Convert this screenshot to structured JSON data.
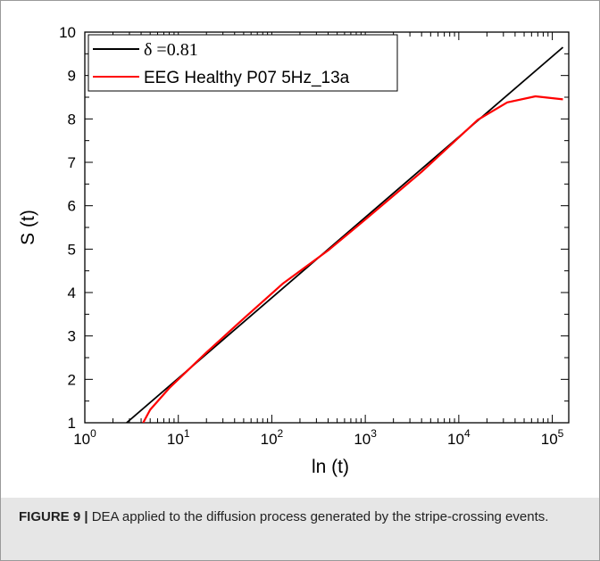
{
  "chart_data": {
    "type": "line",
    "xlabel": "ln (t)",
    "ylabel": "S (t)",
    "x_scale": "log10",
    "xlim": [
      1,
      150000
    ],
    "ylim": [
      1,
      10
    ],
    "x_ticks": [
      {
        "value": 1,
        "base": "10",
        "exp": "0"
      },
      {
        "value": 10,
        "base": "10",
        "exp": "1"
      },
      {
        "value": 100,
        "base": "10",
        "exp": "2"
      },
      {
        "value": 1000,
        "base": "10",
        "exp": "3"
      },
      {
        "value": 10000,
        "base": "10",
        "exp": "4"
      },
      {
        "value": 100000,
        "base": "10",
        "exp": "5"
      }
    ],
    "y_ticks": [
      1,
      2,
      3,
      4,
      5,
      6,
      7,
      8,
      9,
      10
    ],
    "legend_position": "top-left",
    "series": [
      {
        "name": "δ =0.81",
        "color": "#000000",
        "x": [
          2.8,
          130000
        ],
        "y": [
          1.0,
          9.65
        ]
      },
      {
        "name": "EEG Healthy P07 5Hz_13a",
        "color": "#ff0000",
        "x": [
          4.2,
          5,
          8,
          20,
          50,
          130,
          400,
          1000,
          4000,
          16000,
          33000,
          66000,
          130000
        ],
        "y": [
          1.0,
          1.3,
          1.8,
          2.62,
          3.4,
          4.2,
          4.97,
          5.68,
          6.78,
          7.98,
          8.38,
          8.52,
          8.45
        ]
      }
    ]
  },
  "caption": {
    "label": "FIGURE 9 |",
    "text": " DEA applied to the diffusion process generated by the stripe-crossing events."
  }
}
